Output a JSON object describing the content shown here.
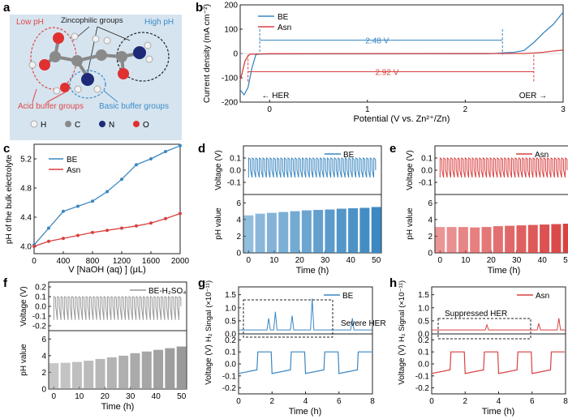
{
  "panel_labels": {
    "a": "a",
    "b": "b",
    "c": "c",
    "d": "d",
    "e": "e",
    "f": "f",
    "g": "g",
    "h": "h"
  },
  "panel_a": {
    "labels": {
      "low_ph": "Low pH",
      "high_ph": "High pH",
      "zincophilic": "Zincophilic groups",
      "acid_buffer": "Acid buffer groups",
      "basic_buffer": "Basic buffer groups"
    },
    "legend": [
      {
        "symbol": "H",
        "color": "#f2f2f2"
      },
      {
        "symbol": "C",
        "color": "#8a8a8a"
      },
      {
        "symbol": "N",
        "color": "#1e2a78"
      },
      {
        "symbol": "O",
        "color": "#e03030"
      }
    ],
    "colors": {
      "background": "#d6e4ef",
      "acid": "#e04848",
      "basic": "#3c8cc8"
    }
  },
  "chart_data": [
    {
      "id": "b",
      "type": "line",
      "xlabel": "Potential (V vs. Zn²⁺/Zn)",
      "ylabel": "Current density (mA cm⁻²)",
      "xlim": [
        -0.3,
        3
      ],
      "ylim": [
        -200,
        200
      ],
      "xticks": [
        0,
        1,
        2,
        3
      ],
      "yticks": [
        -200,
        -100,
        0,
        100,
        200
      ],
      "legend": [
        "BE",
        "Asn"
      ],
      "series": [
        {
          "name": "BE",
          "color": "#3a87c0",
          "x": [
            -0.3,
            -0.26,
            -0.22,
            -0.18,
            -0.14,
            -0.1,
            2.2,
            2.3,
            2.4,
            2.5,
            2.6,
            2.7,
            2.8,
            2.9,
            3.0
          ],
          "y": [
            -150,
            -170,
            -140,
            -60,
            -5,
            -2,
            -1,
            0,
            3,
            5,
            12,
            45,
            85,
            120,
            170
          ]
        },
        {
          "name": "Asn",
          "color": "#d94040",
          "x": [
            -0.3,
            -0.28,
            -0.25,
            -0.22,
            -0.2,
            0.0,
            2.6,
            2.7,
            2.8,
            2.9,
            3.0
          ],
          "y": [
            -110,
            -80,
            -30,
            -10,
            -3,
            -1,
            0,
            2,
            5,
            10,
            14
          ]
        }
      ],
      "annotations": {
        "be_window": "2.48 V",
        "asn_window": "2.92 V",
        "her": "HER",
        "oer": "OER"
      }
    },
    {
      "id": "c",
      "type": "line",
      "xlabel": "V [NaOH (aq) ] (μL)",
      "ylabel": "pH of the bulk electrolyte",
      "xlim": [
        0,
        2000
      ],
      "ylim": [
        3.9,
        5.4
      ],
      "xticks": [
        0,
        400,
        800,
        1200,
        1600,
        2000
      ],
      "yticks": [
        4.0,
        4.4,
        4.8,
        5.2
      ],
      "legend": [
        "BE",
        "Asn"
      ],
      "series": [
        {
          "name": "BE",
          "color": "#3a87c0",
          "x": [
            0,
            200,
            400,
            600,
            800,
            1000,
            1200,
            1400,
            1600,
            1800,
            2000
          ],
          "y": [
            4.02,
            4.25,
            4.48,
            4.55,
            4.62,
            4.75,
            4.92,
            5.12,
            5.2,
            5.3,
            5.38
          ]
        },
        {
          "name": "Asn",
          "color": "#d94040",
          "x": [
            0,
            200,
            400,
            600,
            800,
            1000,
            1200,
            1400,
            1600,
            1800,
            2000
          ],
          "y": [
            4.0,
            4.07,
            4.11,
            4.15,
            4.19,
            4.22,
            4.25,
            4.28,
            4.32,
            4.38,
            4.45
          ]
        }
      ]
    },
    {
      "id": "d",
      "type": "line+bar",
      "legend": "BE",
      "color": "#3a87c0",
      "voltage_ylabel": "Voltage (V)",
      "ph_ylabel": "pH value",
      "xlabel": "Time (h)",
      "voltage_yticks": [
        -0.1,
        0.0,
        0.1
      ],
      "ph_yticks": [
        0,
        2,
        4,
        6
      ],
      "xticks": [
        0,
        10,
        20,
        30,
        40,
        50
      ],
      "ph_values": [
        4.5,
        4.7,
        4.8,
        4.9,
        5.0,
        5.1,
        5.15,
        5.2,
        5.3,
        5.35,
        5.4,
        5.5
      ]
    },
    {
      "id": "e",
      "type": "line+bar",
      "legend": "Asn",
      "color": "#d94040",
      "voltage_ylabel": "Voltage (V)",
      "ph_ylabel": "pH value",
      "xlabel": "Time (h)",
      "voltage_yticks": [
        -0.1,
        0.0,
        0.1
      ],
      "ph_yticks": [
        0,
        2,
        4,
        6
      ],
      "xticks": [
        0,
        10,
        20,
        30,
        40,
        50
      ],
      "ph_values": [
        3.1,
        3.1,
        3.1,
        3.05,
        3.1,
        3.2,
        3.25,
        3.3,
        3.35,
        3.4,
        3.45,
        3.5
      ]
    },
    {
      "id": "f",
      "type": "line+bar",
      "legend": "BE-H₂SO₄",
      "color": "#999999",
      "voltage_ylabel": "Voltage (V)",
      "ph_ylabel": "pH value",
      "xlabel": "Time (h)",
      "voltage_yticks": [
        -0.2,
        -0.1,
        0.0,
        0.1,
        0.2
      ],
      "ph_yticks": [
        0,
        2,
        4,
        6
      ],
      "xticks": [
        0,
        10,
        20,
        30,
        40,
        50
      ],
      "ph_values": [
        3.1,
        3.15,
        3.25,
        3.4,
        3.6,
        3.8,
        4.0,
        4.3,
        4.5,
        4.7,
        4.9,
        5.1
      ]
    },
    {
      "id": "g",
      "type": "line",
      "legend": "BE",
      "color": "#3a87c0",
      "signal_ylabel": "H₂ Singal (×10⁻¹¹)",
      "voltage_ylabel": "Voltage (V)",
      "xlabel": "Time (h)",
      "signal_yticks": [
        0.0,
        0.5,
        1.0,
        1.5
      ],
      "voltage_yticks": [
        -0.2,
        -0.1,
        0.0,
        0.1,
        0.2
      ],
      "xticks": [
        0,
        2,
        4,
        6,
        8
      ],
      "annotation": "Severe HER"
    },
    {
      "id": "h",
      "type": "line",
      "legend": "Asn",
      "color": "#d94040",
      "signal_ylabel": "H₂ Signal (×10⁻¹¹)",
      "voltage_ylabel": "Voltage (V)",
      "xlabel": "Time (h)",
      "signal_yticks": [
        0.0,
        0.5,
        1.0,
        1.5
      ],
      "voltage_yticks": [
        -0.2,
        -0.1,
        0.0,
        0.1,
        0.2
      ],
      "xticks": [
        0,
        2,
        4,
        6,
        8
      ],
      "annotation": "Suppressed HER"
    }
  ]
}
